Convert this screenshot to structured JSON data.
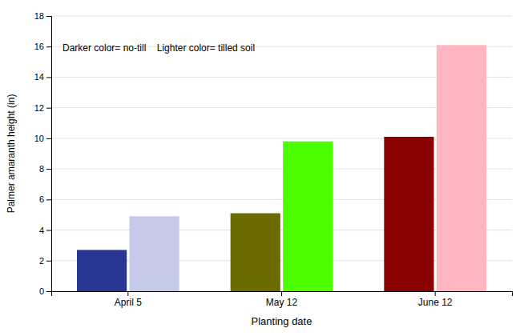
{
  "chart_data": {
    "type": "bar",
    "categories": [
      "April 5",
      "May 12",
      "June 12"
    ],
    "series": [
      {
        "colors": [
          "#283593",
          "#6b6b00",
          "#8b0000"
        ],
        "values": [
          2.7,
          5.1,
          10.1
        ]
      },
      {
        "colors": [
          "#c5cae9",
          "#4cff00",
          "#ffb6c1"
        ],
        "values": [
          4.9,
          9.8,
          16.1
        ]
      }
    ],
    "xlabel": "Planting date",
    "ylabel": "Palmer amaranth height (in)",
    "annotation": "Darker color= no-till    Lighter color= tilled soil",
    "ylim": [
      0,
      18
    ],
    "yticks": [
      0,
      2,
      4,
      6,
      8,
      10,
      12,
      14,
      16,
      18
    ],
    "grid": true
  }
}
